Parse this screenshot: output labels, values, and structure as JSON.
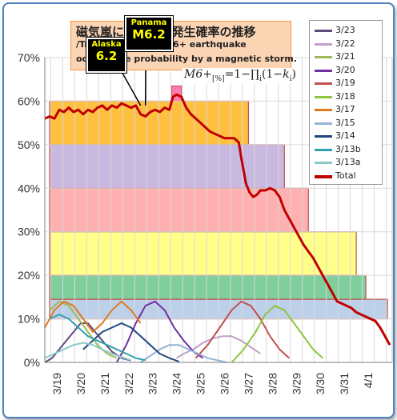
{
  "chart_data": {
    "type": "line",
    "title": "磁気嵐による地震発生確率の推移",
    "subtitle_line1": "/Transition of the M6+ earthquake",
    "subtitle_line2": "occurrence probability by a magnetic storm.",
    "formula": {
      "lhs": "M6+",
      "unit": "[%]",
      "rhs_a": "=1−∏",
      "sub_i": "i",
      "rhs_b": "(1−",
      "k": "k",
      "sub_k": "i",
      "rhs_c": ")"
    },
    "y_axis": {
      "min": 0,
      "max": 70,
      "ticks": [
        "0%",
        "10%",
        "20%",
        "30%",
        "40%",
        "50%",
        "60%",
        "70%"
      ]
    },
    "x_axis": {
      "min": 0,
      "max": 14.5,
      "ticks": [
        {
          "label": "3/19",
          "pos": 0.5
        },
        {
          "label": "3/20",
          "pos": 1.5
        },
        {
          "label": "3/21",
          "pos": 2.5
        },
        {
          "label": "3/22",
          "pos": 3.5
        },
        {
          "label": "3/23",
          "pos": 4.5
        },
        {
          "label": "3/24",
          "pos": 5.5
        },
        {
          "label": "3/25",
          "pos": 6.5
        },
        {
          "label": "3/26",
          "pos": 7.5
        },
        {
          "label": "3/27",
          "pos": 8.5
        },
        {
          "label": "3/28",
          "pos": 9.5
        },
        {
          "label": "3/29",
          "pos": 10.5
        },
        {
          "label": "3/30",
          "pos": 11.5
        },
        {
          "label": "3/31",
          "pos": 12.5
        },
        {
          "label": "4/1",
          "pos": 13.5
        }
      ]
    },
    "bands": [
      {
        "x_end": 14.3,
        "y_low": 10,
        "y_high": 14.5,
        "color": "#bcd0ea",
        "edge": "#c0504d"
      },
      {
        "x_end": 13.4,
        "y_low": 14.5,
        "y_high": 20,
        "color": "#7fcf9c",
        "edge": "#c0504d"
      },
      {
        "x_end": 13.0,
        "y_low": 20,
        "y_high": 30,
        "color": "#ffff8a",
        "edge": "#c0504d"
      },
      {
        "x_end": 11.0,
        "y_low": 30,
        "y_high": 40,
        "color": "#ffb0b0",
        "edge": "#c0504d"
      },
      {
        "x_end": 10.0,
        "y_low": 40,
        "y_high": 50,
        "color": "#c9b8e0",
        "edge": "#c0504d"
      },
      {
        "x_end": 8.5,
        "y_low": 50,
        "y_high": 60,
        "color": "#ffc040",
        "edge": "#c0504d"
      }
    ],
    "peak_box": {
      "x_start": 5.3,
      "x_end": 5.7,
      "y_low": 60,
      "y_high": 63.5,
      "color": "#ff7ab0"
    },
    "series": [
      {
        "name": "3/23",
        "color": "#604a7b",
        "points": [
          [
            0,
            0
          ],
          [
            0.3,
            1
          ],
          [
            0.6,
            3
          ],
          [
            0.9,
            5
          ],
          [
            1.2,
            7
          ],
          [
            1.5,
            9
          ],
          [
            1.8,
            9
          ],
          [
            2.1,
            7
          ],
          [
            2.4,
            5
          ],
          [
            2.8,
            2.5
          ],
          [
            3.2,
            1
          ],
          [
            3.6,
            0.4
          ]
        ]
      },
      {
        "name": "3/22",
        "color": "#c0a0c8",
        "points": [
          [
            5.5,
            1
          ],
          [
            5.8,
            2
          ],
          [
            6.2,
            3
          ],
          [
            6.6,
            4.5
          ],
          [
            7.0,
            5.5
          ],
          [
            7.4,
            6
          ],
          [
            7.8,
            6
          ],
          [
            8.2,
            5
          ],
          [
            8.6,
            3.5
          ],
          [
            9.0,
            2
          ]
        ]
      },
      {
        "name": "3/21",
        "color": "#9bbb59",
        "points": [
          [
            0.2,
            12
          ],
          [
            0.6,
            14
          ],
          [
            1.0,
            13
          ],
          [
            1.4,
            10
          ],
          [
            1.8,
            7
          ],
          [
            2.2,
            4
          ],
          [
            2.6,
            2
          ],
          [
            3.0,
            1
          ]
        ]
      },
      {
        "name": "3/20",
        "color": "#7030a0",
        "points": [
          [
            3.0,
            0
          ],
          [
            3.4,
            4
          ],
          [
            3.8,
            9
          ],
          [
            4.2,
            13
          ],
          [
            4.6,
            14
          ],
          [
            5.0,
            12
          ],
          [
            5.4,
            8
          ],
          [
            5.8,
            5
          ],
          [
            6.2,
            2.5
          ],
          [
            6.6,
            1
          ]
        ]
      },
      {
        "name": "3/19",
        "color": "#c0504d",
        "points": [
          [
            6.3,
            1
          ],
          [
            6.8,
            4
          ],
          [
            7.3,
            8
          ],
          [
            7.8,
            12
          ],
          [
            8.2,
            14
          ],
          [
            8.6,
            13
          ],
          [
            9.0,
            10
          ],
          [
            9.4,
            6
          ],
          [
            9.8,
            3
          ],
          [
            10.2,
            1
          ]
        ]
      },
      {
        "name": "3/18",
        "color": "#8cc63e",
        "points": [
          [
            7.8,
            0
          ],
          [
            8.3,
            3
          ],
          [
            8.8,
            7
          ],
          [
            9.2,
            11
          ],
          [
            9.6,
            13
          ],
          [
            10.0,
            12
          ],
          [
            10.4,
            9
          ],
          [
            10.8,
            6
          ],
          [
            11.2,
            3
          ],
          [
            11.6,
            1
          ]
        ]
      },
      {
        "name": "3/17",
        "color": "#e07a20",
        "points": [
          [
            0.0,
            8
          ],
          [
            0.4,
            12
          ],
          [
            0.8,
            14
          ],
          [
            1.2,
            13
          ],
          [
            1.6,
            10
          ],
          [
            2.0,
            7
          ],
          [
            2.4,
            9
          ],
          [
            2.8,
            12
          ],
          [
            3.2,
            14
          ],
          [
            3.6,
            12
          ],
          [
            4.0,
            9
          ]
        ]
      },
      {
        "name": "3/15",
        "color": "#95b3d7",
        "points": [
          [
            4.0,
            0
          ],
          [
            4.4,
            1.5
          ],
          [
            4.8,
            3
          ],
          [
            5.2,
            4
          ],
          [
            5.6,
            4
          ],
          [
            6.0,
            3
          ],
          [
            6.4,
            2
          ],
          [
            6.8,
            1
          ],
          [
            7.2,
            0.5
          ],
          [
            7.6,
            0
          ]
        ]
      },
      {
        "name": "3/14",
        "color": "#1f497d",
        "points": [
          [
            1.6,
            3
          ],
          [
            2.0,
            5
          ],
          [
            2.4,
            7
          ],
          [
            2.8,
            8
          ],
          [
            3.2,
            9
          ],
          [
            3.6,
            8
          ],
          [
            4.0,
            6
          ],
          [
            4.4,
            4
          ],
          [
            4.8,
            2
          ],
          [
            5.2,
            1
          ],
          [
            5.6,
            0.2
          ]
        ]
      },
      {
        "name": "3/13b",
        "color": "#31a0b0",
        "points": [
          [
            0.2,
            10
          ],
          [
            0.6,
            11
          ],
          [
            1.0,
            10
          ],
          [
            1.4,
            8
          ],
          [
            1.8,
            6
          ],
          [
            2.2,
            5
          ],
          [
            2.6,
            4
          ],
          [
            3.0,
            3
          ],
          [
            3.4,
            2
          ],
          [
            3.8,
            1
          ],
          [
            4.2,
            0.5
          ]
        ]
      },
      {
        "name": "3/13a",
        "color": "#8ec9c9",
        "points": [
          [
            0.0,
            1
          ],
          [
            0.4,
            2
          ],
          [
            0.8,
            3
          ],
          [
            1.2,
            4
          ],
          [
            1.6,
            4.5
          ],
          [
            2.0,
            4
          ],
          [
            2.4,
            3
          ],
          [
            2.8,
            2
          ],
          [
            3.2,
            1.2
          ],
          [
            3.6,
            0.5
          ]
        ]
      },
      {
        "name": "Total",
        "color": "#c00000",
        "points": [
          [
            0.0,
            56
          ],
          [
            0.2,
            56.5
          ],
          [
            0.4,
            56
          ],
          [
            0.6,
            58
          ],
          [
            0.8,
            57.5
          ],
          [
            1.0,
            58.5
          ],
          [
            1.2,
            57.5
          ],
          [
            1.4,
            58
          ],
          [
            1.6,
            57
          ],
          [
            1.8,
            58
          ],
          [
            2.0,
            57.5
          ],
          [
            2.2,
            58.5
          ],
          [
            2.4,
            59
          ],
          [
            2.6,
            58
          ],
          [
            2.8,
            59
          ],
          [
            3.0,
            58.5
          ],
          [
            3.2,
            59.5
          ],
          [
            3.4,
            59
          ],
          [
            3.6,
            58.5
          ],
          [
            3.8,
            59
          ],
          [
            4.0,
            57
          ],
          [
            4.2,
            56.5
          ],
          [
            4.4,
            57.5
          ],
          [
            4.6,
            58
          ],
          [
            4.8,
            57.5
          ],
          [
            5.0,
            58.5
          ],
          [
            5.2,
            58
          ],
          [
            5.35,
            61
          ],
          [
            5.5,
            61.5
          ],
          [
            5.7,
            61
          ],
          [
            5.9,
            58.5
          ],
          [
            6.1,
            57
          ],
          [
            6.3,
            56
          ],
          [
            6.5,
            55
          ],
          [
            6.7,
            54
          ],
          [
            6.9,
            53
          ],
          [
            7.1,
            52.5
          ],
          [
            7.3,
            52
          ],
          [
            7.5,
            51.5
          ],
          [
            7.7,
            51.5
          ],
          [
            7.9,
            51.5
          ],
          [
            8.0,
            51
          ],
          [
            8.1,
            50.5
          ],
          [
            8.2,
            47
          ],
          [
            8.3,
            44
          ],
          [
            8.4,
            41
          ],
          [
            8.55,
            39
          ],
          [
            8.7,
            38
          ],
          [
            8.85,
            38.5
          ],
          [
            9.0,
            39.5
          ],
          [
            9.2,
            39.5
          ],
          [
            9.4,
            40
          ],
          [
            9.6,
            39.5
          ],
          [
            9.8,
            38
          ],
          [
            10.0,
            35
          ],
          [
            10.2,
            33
          ],
          [
            10.4,
            31
          ],
          [
            10.6,
            29
          ],
          [
            10.8,
            27
          ],
          [
            11.0,
            25.5
          ],
          [
            11.2,
            24
          ],
          [
            11.4,
            22
          ],
          [
            11.6,
            20
          ],
          [
            11.8,
            18
          ],
          [
            12.0,
            16
          ],
          [
            12.2,
            14
          ],
          [
            12.4,
            13.5
          ],
          [
            12.6,
            13
          ],
          [
            12.8,
            12.5
          ],
          [
            13.0,
            11.5
          ],
          [
            13.2,
            11
          ],
          [
            13.4,
            10.5
          ],
          [
            13.6,
            10
          ],
          [
            13.8,
            9.5
          ],
          [
            14.0,
            8
          ],
          [
            14.2,
            6
          ],
          [
            14.4,
            4
          ]
        ]
      }
    ],
    "annotations": [
      {
        "place": "Alaska",
        "magnitude": "6.2",
        "at_x": 4.0,
        "at_y": 59
      },
      {
        "place": "Panama",
        "magnitude": "M6.2",
        "at_x": 4.2,
        "at_y": 59
      }
    ]
  }
}
